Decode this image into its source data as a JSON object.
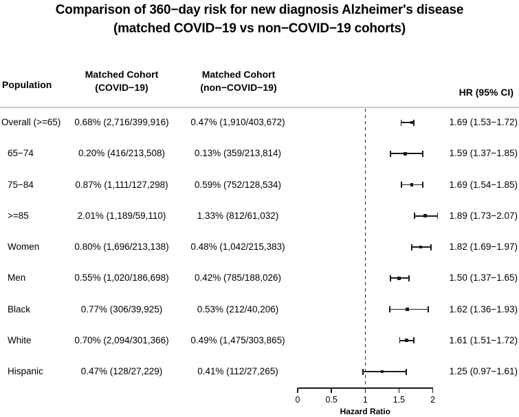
{
  "title": {
    "line1": "Comparison of 360−day risk for new diagnosis Alzheimer's disease",
    "line2": "(matched COVID−19 vs non−COVID−19 cohorts)"
  },
  "table": {
    "headers": {
      "population": "Population",
      "covid_line1": "Matched Cohort",
      "covid_line2": "(COVID−19)",
      "noncovid_line1": "Matched Cohort",
      "noncovid_line2": "(non−COVID−19)",
      "hr": "HR (95% CI)"
    },
    "rows": [
      {
        "population": "Overall (>=65)",
        "covid": "0.68% (2,716/399,916)",
        "noncovid": "0.47% (1,910/403,672)",
        "hr_text": "1.69 (1.53−1.72)"
      },
      {
        "population": "65−74",
        "covid": "0.20% (416/213,508)",
        "noncovid": "0.13% (359/213,814)",
        "hr_text": "1.59 (1.37−1.85)"
      },
      {
        "population": "75−84",
        "covid": "0.87% (1,111/127,298)",
        "noncovid": "0.59% (752/128,534)",
        "hr_text": "1.69 (1.54−1.85)"
      },
      {
        "population": ">=85",
        "covid": "2.01% (1,189/59,110)",
        "noncovid": "1.33% (812/61,032)",
        "hr_text": "1.89 (1.73−2.07)"
      },
      {
        "population": "Women",
        "covid": "0.80% (1,696/213,138)",
        "noncovid": "0.48% (1,042/215,383)",
        "hr_text": "1.82 (1.69−1.97)"
      },
      {
        "population": "Men",
        "covid": "0.55% (1,020/186,698)",
        "noncovid": "0.42% (785/188,026)",
        "hr_text": "1.50 (1.37−1.65)"
      },
      {
        "population": "Black",
        "covid": "0.77% (306/39,925)",
        "noncovid": "0.53% (212/40,206)",
        "hr_text": "1.62 (1.36−1.93)"
      },
      {
        "population": "White",
        "covid": "0.70% (2,094/301,366)",
        "noncovid": "0.49% (1,475/303,865)",
        "hr_text": "1.61 (1.51−1.72)"
      },
      {
        "population": "Hispanic",
        "covid": "0.47% (128/27,229)",
        "noncovid": "0.41% (112/27,265)",
        "hr_text": "1.25 (0.97−1.61)"
      }
    ]
  },
  "chart_data": {
    "type": "scatter",
    "subtype": "forest-plot",
    "title": "Comparison of 360−day risk for new diagnosis Alzheimer's disease (matched COVID−19 vs non−COVID−19 cohorts)",
    "xlabel": "Hazard Ratio",
    "ylabel": "",
    "xlim": [
      0,
      2
    ],
    "xticks": [
      0,
      0.5,
      1,
      1.5,
      2
    ],
    "xtick_labels": [
      "0",
      "0.5",
      "1",
      "1.5",
      "2"
    ],
    "reference_line_x": 1,
    "grid": false,
    "legend": "none",
    "categories": [
      "Overall (>=65)",
      "65−74",
      "75−84",
      ">=85",
      "Women",
      "Men",
      "Black",
      "White",
      "Hispanic"
    ],
    "series": [
      {
        "name": "Hazard Ratio",
        "values": [
          1.69,
          1.59,
          1.69,
          1.89,
          1.82,
          1.5,
          1.62,
          1.61,
          1.25
        ]
      },
      {
        "name": "CI lower",
        "values": [
          1.53,
          1.37,
          1.54,
          1.73,
          1.69,
          1.37,
          1.36,
          1.51,
          0.97
        ]
      },
      {
        "name": "CI upper",
        "values": [
          1.72,
          1.85,
          1.85,
          2.07,
          1.97,
          1.65,
          1.93,
          1.72,
          1.61
        ]
      }
    ]
  },
  "colors": {
    "text": "#000000",
    "separator": "#cbcbcb",
    "marker": "#1a1a1a",
    "background": "#ffffff"
  }
}
